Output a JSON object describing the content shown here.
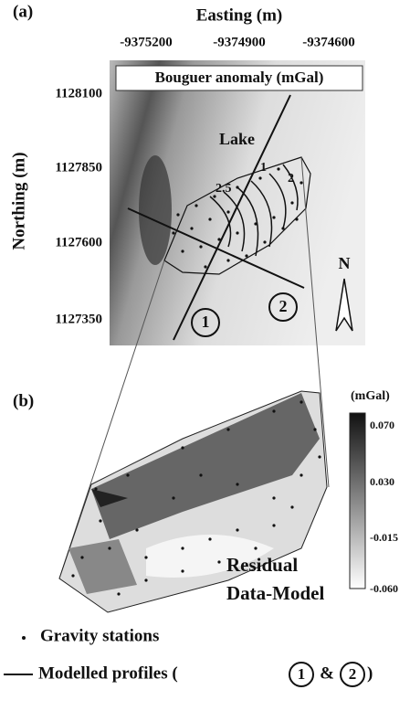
{
  "panel_a": {
    "label": "(a)",
    "x_axis_title": "Easting (m)",
    "y_axis_title": "Northing (m)",
    "x_ticks": [
      "-9375200",
      "-9374900",
      "-9374600"
    ],
    "y_ticks": [
      "1128100",
      "1127850",
      "1127600",
      "1127350"
    ],
    "map_title": "Bouguer anomaly (mGal)",
    "lake_label": "Lake",
    "contour_labels": [
      "2.5",
      "1",
      "2"
    ],
    "profiles": [
      "1",
      "2"
    ],
    "north": "N"
  },
  "panel_b": {
    "label": "(b)",
    "colorbar_title": "(mGal)",
    "colorbar_ticks": [
      "0.070",
      "0.030",
      "-0.015",
      "-0.060"
    ],
    "caption_lines": [
      "Residual",
      "Data-Model"
    ]
  },
  "legend": {
    "stations": "Gravity stations",
    "profiles_prefix": "Modelled profiles (",
    "and": "&",
    "close": ")"
  }
}
